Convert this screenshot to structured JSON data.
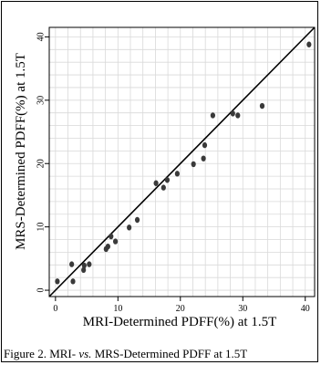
{
  "chart_data": {
    "type": "scatter",
    "title": "",
    "xlabel": "MRI-Determined PDFF(%) at 1.5T",
    "ylabel": "MRS-Determined PDFF(%) at 1.5T",
    "xlim": [
      -1,
      41.5
    ],
    "ylim": [
      -1,
      41.5
    ],
    "xticks": [
      0,
      10,
      20,
      30,
      40
    ],
    "yticks": [
      0,
      10,
      20,
      30,
      40
    ],
    "grid": true,
    "reference_line": {
      "type": "identity",
      "from": [
        -1,
        -1
      ],
      "to": [
        41.5,
        41.5
      ]
    },
    "points": [
      {
        "x": 0.3,
        "y": 1.4
      },
      {
        "x": 2.6,
        "y": 4.1
      },
      {
        "x": 2.8,
        "y": 1.4
      },
      {
        "x": 4.5,
        "y": 3.2
      },
      {
        "x": 4.6,
        "y": 3.9
      },
      {
        "x": 5.4,
        "y": 4.1
      },
      {
        "x": 8.1,
        "y": 6.5
      },
      {
        "x": 8.4,
        "y": 6.9
      },
      {
        "x": 8.9,
        "y": 8.5
      },
      {
        "x": 9.6,
        "y": 7.7
      },
      {
        "x": 11.8,
        "y": 9.9
      },
      {
        "x": 13.1,
        "y": 11.1
      },
      {
        "x": 16.1,
        "y": 16.9
      },
      {
        "x": 17.3,
        "y": 16.2
      },
      {
        "x": 17.9,
        "y": 17.4
      },
      {
        "x": 19.5,
        "y": 18.4
      },
      {
        "x": 22.1,
        "y": 19.9
      },
      {
        "x": 23.7,
        "y": 20.8
      },
      {
        "x": 23.9,
        "y": 22.9
      },
      {
        "x": 25.2,
        "y": 27.6
      },
      {
        "x": 28.4,
        "y": 27.9
      },
      {
        "x": 29.2,
        "y": 27.6
      },
      {
        "x": 33.1,
        "y": 29.1
      },
      {
        "x": 40.6,
        "y": 38.8
      }
    ],
    "colors": {
      "point": "#3a3a3a",
      "grid": "#d9d9d9",
      "axis": "#000000"
    }
  },
  "caption": {
    "prefix": "Figure 2. MRI- ",
    "emphasis": "vs.",
    "suffix": " MRS-Determined PDFF at 1.5T"
  }
}
